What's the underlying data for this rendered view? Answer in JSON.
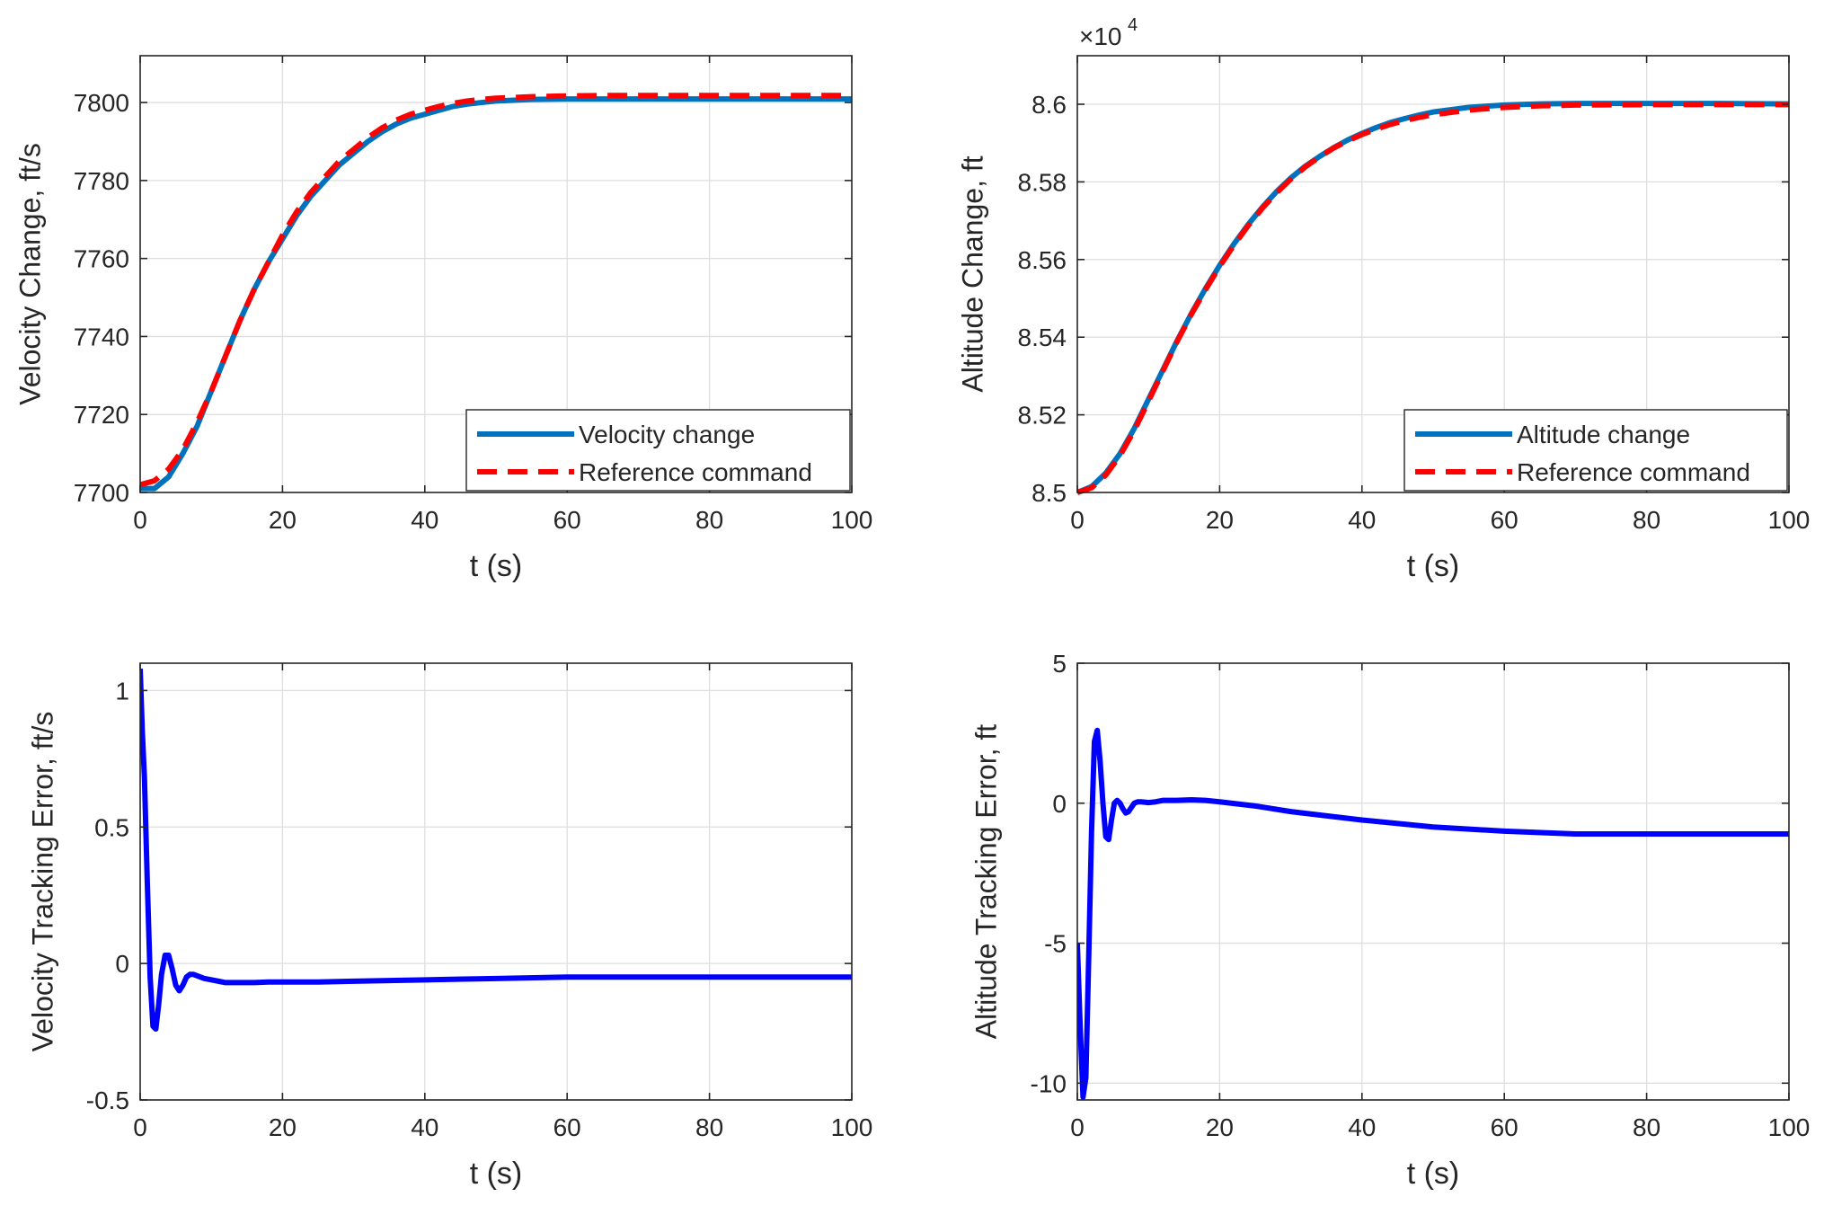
{
  "chart_data": [
    {
      "type": "line",
      "id": "velocity-change",
      "xlabel": "t (s)",
      "ylabel": "Velocity Change, ft/s",
      "xlim": [
        0,
        100
      ],
      "ylim": [
        7700,
        7812
      ],
      "xticks": [
        0,
        20,
        40,
        60,
        80,
        100
      ],
      "xtick_labels": [
        "0",
        "20",
        "40",
        "60",
        "80",
        "100"
      ],
      "yticks": [
        7700,
        7720,
        7740,
        7760,
        7780,
        7800
      ],
      "ytick_labels": [
        "7700",
        "7720",
        "7740",
        "7760",
        "7780",
        "7800"
      ],
      "grid": true,
      "legend_position": "bottom-right",
      "series": [
        {
          "name": "Velocity change",
          "color": "#0072BD",
          "style": "solid",
          "x": [
            0,
            2,
            4,
            6,
            8,
            10,
            12,
            14,
            16,
            18,
            20,
            22,
            24,
            26,
            28,
            30,
            32,
            34,
            36,
            38,
            40,
            42,
            44,
            46,
            48,
            50,
            55,
            60,
            65,
            70,
            80,
            90,
            100
          ],
          "y": [
            7701,
            7701,
            7704,
            7710,
            7717,
            7726,
            7735,
            7744,
            7752,
            7759,
            7765,
            7771,
            7776,
            7780,
            7784,
            7787,
            7790,
            7792.5,
            7794.5,
            7796,
            7797,
            7798,
            7799,
            7799.6,
            7800,
            7800.4,
            7800.8,
            7800.9,
            7800.9,
            7800.9,
            7800.9,
            7800.9,
            7800.9
          ]
        },
        {
          "name": "Reference command",
          "color": "#FF0000",
          "style": "dashed",
          "x": [
            0,
            2,
            4,
            6,
            8,
            10,
            12,
            14,
            16,
            18,
            20,
            22,
            24,
            26,
            28,
            30,
            32,
            34,
            36,
            38,
            40,
            42,
            44,
            46,
            48,
            50,
            55,
            60,
            65,
            70,
            80,
            90,
            100
          ],
          "y": [
            7702,
            7703,
            7706,
            7711,
            7718,
            7726,
            7735,
            7744,
            7752,
            7759,
            7766,
            7772,
            7777,
            7781,
            7785,
            7788,
            7791,
            7793.5,
            7795.5,
            7797,
            7798,
            7799,
            7799.8,
            7800.4,
            7800.8,
            7801.1,
            7801.5,
            7801.7,
            7801.8,
            7801.8,
            7801.8,
            7801.8,
            7801.8
          ]
        }
      ]
    },
    {
      "type": "line",
      "id": "altitude-change",
      "xlabel": "t (s)",
      "ylabel": "Altitude Change, ft",
      "exponent_label": "×10",
      "exponent_power": "4",
      "xlim": [
        0,
        100
      ],
      "ylim": [
        85000,
        86125
      ],
      "xticks": [
        0,
        20,
        40,
        60,
        80,
        100
      ],
      "xtick_labels": [
        "0",
        "20",
        "40",
        "60",
        "80",
        "100"
      ],
      "yticks": [
        85000,
        85200,
        85400,
        85600,
        85800,
        86000
      ],
      "ytick_labels": [
        "8.5",
        "8.52",
        "8.54",
        "8.56",
        "8.58",
        "8.6"
      ],
      "grid": true,
      "legend_position": "bottom-right",
      "series": [
        {
          "name": "Altitude change",
          "color": "#0072BD",
          "style": "solid",
          "x": [
            0,
            2,
            4,
            6,
            8,
            10,
            12,
            14,
            16,
            18,
            20,
            22,
            24,
            26,
            28,
            30,
            32,
            34,
            36,
            38,
            40,
            42,
            44,
            46,
            48,
            50,
            55,
            60,
            65,
            70,
            80,
            90,
            100
          ],
          "y": [
            85000,
            85015,
            85050,
            85100,
            85165,
            85240,
            85315,
            85390,
            85460,
            85525,
            85585,
            85640,
            85690,
            85735,
            85775,
            85810,
            85840,
            85865,
            85888,
            85908,
            85925,
            85940,
            85953,
            85963,
            85972,
            85980,
            85992,
            85998,
            86001,
            86002,
            86002,
            86002,
            86001
          ]
        },
        {
          "name": "Reference command",
          "color": "#FF0000",
          "style": "dashed",
          "x": [
            0,
            2,
            4,
            6,
            8,
            10,
            12,
            14,
            16,
            18,
            20,
            22,
            24,
            26,
            28,
            30,
            32,
            34,
            36,
            38,
            40,
            42,
            44,
            46,
            48,
            50,
            55,
            60,
            65,
            70,
            80,
            90,
            100
          ],
          "y": [
            85000,
            85012,
            85045,
            85095,
            85160,
            85235,
            85312,
            85388,
            85458,
            85522,
            85582,
            85637,
            85687,
            85732,
            85772,
            85807,
            85838,
            85864,
            85887,
            85906,
            85922,
            85936,
            85948,
            85958,
            85966,
            85973,
            85985,
            85992,
            85996,
            85998,
            85999,
            85999,
            85999
          ]
        }
      ]
    },
    {
      "type": "line",
      "id": "velocity-tracking-error",
      "xlabel": "t (s)",
      "ylabel": "Velocity Tracking Error, ft/s",
      "xlim": [
        0,
        100
      ],
      "ylim": [
        -0.5,
        1.1
      ],
      "xticks": [
        0,
        20,
        40,
        60,
        80,
        100
      ],
      "xtick_labels": [
        "0",
        "20",
        "40",
        "60",
        "80",
        "100"
      ],
      "yticks": [
        -0.5,
        0,
        0.5,
        1
      ],
      "ytick_labels": [
        "-0.5",
        "0",
        "0.5",
        "1"
      ],
      "grid": true,
      "series": [
        {
          "name": "Velocity tracking error",
          "color": "#0000FF",
          "style": "solid",
          "x": [
            0,
            0.3,
            0.6,
            1,
            1.4,
            1.8,
            2.2,
            2.6,
            3,
            3.5,
            4,
            4.5,
            5,
            5.5,
            6,
            6.5,
            7,
            7.5,
            8,
            8.5,
            9,
            10,
            11,
            12,
            14,
            16,
            18,
            20,
            25,
            30,
            40,
            50,
            60,
            70,
            80,
            90,
            100
          ],
          "y": [
            1.08,
            0.85,
            0.68,
            0.3,
            -0.05,
            -0.23,
            -0.24,
            -0.15,
            -0.04,
            0.03,
            0.03,
            -0.02,
            -0.08,
            -0.1,
            -0.08,
            -0.05,
            -0.04,
            -0.04,
            -0.045,
            -0.05,
            -0.055,
            -0.06,
            -0.065,
            -0.07,
            -0.07,
            -0.07,
            -0.068,
            -0.068,
            -0.068,
            -0.065,
            -0.06,
            -0.055,
            -0.05,
            -0.05,
            -0.05,
            -0.05,
            -0.05
          ]
        }
      ]
    },
    {
      "type": "line",
      "id": "altitude-tracking-error",
      "xlabel": "t (s)",
      "ylabel": "Altitude Tracking Error, ft",
      "xlim": [
        0,
        100
      ],
      "ylim": [
        -10.6,
        5
      ],
      "xticks": [
        0,
        20,
        40,
        60,
        80,
        100
      ],
      "xtick_labels": [
        "0",
        "20",
        "40",
        "60",
        "80",
        "100"
      ],
      "yticks": [
        -10,
        -5,
        0,
        5
      ],
      "ytick_labels": [
        "-10",
        "-5",
        "0",
        "5"
      ],
      "grid": true,
      "series": [
        {
          "name": "Altitude tracking error",
          "color": "#0000FF",
          "style": "solid",
          "x": [
            0,
            0.4,
            0.8,
            1.2,
            1.6,
            2,
            2.4,
            2.8,
            3.2,
            3.6,
            4,
            4.4,
            4.8,
            5.2,
            5.6,
            6,
            6.4,
            6.8,
            7.2,
            7.6,
            8,
            8.5,
            9,
            10,
            11,
            12,
            14,
            16,
            18,
            20,
            25,
            30,
            40,
            50,
            60,
            70,
            80,
            90,
            100
          ],
          "y": [
            -5,
            -8,
            -10.5,
            -9.8,
            -5.5,
            -1,
            2.2,
            2.6,
            1.5,
            0,
            -1.2,
            -1.3,
            -0.6,
            0,
            0.1,
            0,
            -0.2,
            -0.35,
            -0.3,
            -0.15,
            0,
            0.05,
            0.05,
            0.02,
            0.05,
            0.1,
            0.1,
            0.12,
            0.1,
            0.05,
            -0.1,
            -0.3,
            -0.6,
            -0.85,
            -1.0,
            -1.1,
            -1.1,
            -1.1,
            -1.1
          ]
        }
      ]
    }
  ]
}
